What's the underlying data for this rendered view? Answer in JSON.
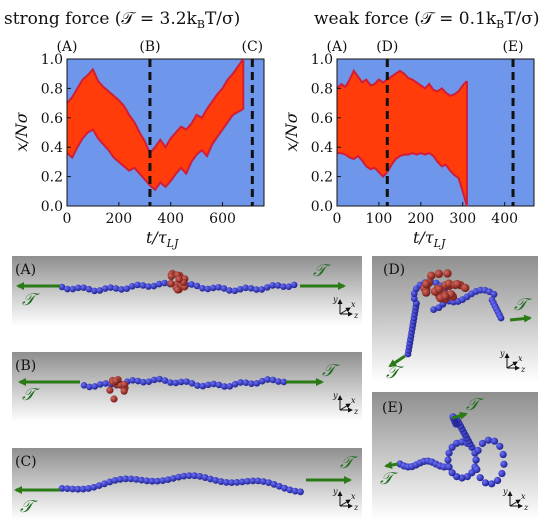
{
  "chart_data": [
    {
      "type": "area",
      "title": "strong force (𝒯 = 3.2k",
      "title_sub": "B",
      "title_tail": "T/σ)",
      "xlabel": "t/τ",
      "xlabel_sub": "LJ",
      "ylabel": "x/Nσ",
      "xlim": [
        0,
        760
      ],
      "ylim": [
        0.0,
        1.0
      ],
      "xticks": [
        0,
        200,
        400,
        600
      ],
      "yticks": [
        "0.0",
        "0.2",
        "0.4",
        "0.6",
        "0.8",
        "1.0"
      ],
      "background_color": "#6e96eb",
      "fill_color": "#ff3c0a",
      "edge_color": "#d01e38",
      "markers": [
        {
          "label": "(A)",
          "t": 0
        },
        {
          "label": "(B)",
          "t": 320
        },
        {
          "label": "(C)",
          "t": 715
        }
      ],
      "band": [
        {
          "t": 0,
          "low": 0.36,
          "high": 0.7
        },
        {
          "t": 20,
          "low": 0.33,
          "high": 0.74
        },
        {
          "t": 40,
          "low": 0.4,
          "high": 0.8
        },
        {
          "t": 60,
          "low": 0.46,
          "high": 0.86
        },
        {
          "t": 80,
          "low": 0.5,
          "high": 0.89
        },
        {
          "t": 100,
          "low": 0.52,
          "high": 0.93
        },
        {
          "t": 120,
          "low": 0.46,
          "high": 0.85
        },
        {
          "t": 140,
          "low": 0.42,
          "high": 0.81
        },
        {
          "t": 160,
          "low": 0.38,
          "high": 0.78
        },
        {
          "t": 180,
          "low": 0.33,
          "high": 0.75
        },
        {
          "t": 200,
          "low": 0.3,
          "high": 0.72
        },
        {
          "t": 220,
          "low": 0.27,
          "high": 0.68
        },
        {
          "t": 240,
          "low": 0.24,
          "high": 0.62
        },
        {
          "t": 260,
          "low": 0.26,
          "high": 0.57
        },
        {
          "t": 280,
          "low": 0.22,
          "high": 0.5
        },
        {
          "t": 300,
          "low": 0.18,
          "high": 0.44
        },
        {
          "t": 320,
          "low": 0.14,
          "high": 0.36
        },
        {
          "t": 340,
          "low": 0.11,
          "high": 0.4
        },
        {
          "t": 360,
          "low": 0.16,
          "high": 0.45
        },
        {
          "t": 380,
          "low": 0.13,
          "high": 0.4
        },
        {
          "t": 400,
          "low": 0.17,
          "high": 0.46
        },
        {
          "t": 420,
          "low": 0.22,
          "high": 0.5
        },
        {
          "t": 440,
          "low": 0.26,
          "high": 0.54
        },
        {
          "t": 460,
          "low": 0.22,
          "high": 0.52
        },
        {
          "t": 480,
          "low": 0.3,
          "high": 0.56
        },
        {
          "t": 500,
          "low": 0.35,
          "high": 0.62
        },
        {
          "t": 520,
          "low": 0.38,
          "high": 0.6
        },
        {
          "t": 540,
          "low": 0.34,
          "high": 0.66
        },
        {
          "t": 560,
          "low": 0.42,
          "high": 0.71
        },
        {
          "t": 580,
          "low": 0.47,
          "high": 0.76
        },
        {
          "t": 600,
          "low": 0.52,
          "high": 0.8
        },
        {
          "t": 620,
          "low": 0.57,
          "high": 0.86
        },
        {
          "t": 640,
          "low": 0.62,
          "high": 0.9
        },
        {
          "t": 660,
          "low": 0.64,
          "high": 0.95
        },
        {
          "t": 680,
          "low": 0.66,
          "high": 1.0
        }
      ]
    },
    {
      "type": "area",
      "title": "weak force (𝒯 = 0.1k",
      "title_sub": "B",
      "title_tail": "T/σ)",
      "xlabel": "t/τ",
      "xlabel_sub": "LJ",
      "ylabel": "x/Nσ",
      "xlim": [
        0,
        470
      ],
      "ylim": [
        0.0,
        1.0
      ],
      "xticks": [
        0,
        100,
        200,
        300,
        400
      ],
      "yticks": [
        "0.0",
        "0.2",
        "0.4",
        "0.6",
        "0.8",
        "1.0"
      ],
      "background_color": "#6e96eb",
      "fill_color": "#ff3c0a",
      "edge_color": "#d01e38",
      "markers": [
        {
          "label": "(A)",
          "t": 0
        },
        {
          "label": "(D)",
          "t": 120
        },
        {
          "label": "(E)",
          "t": 420
        }
      ],
      "band": [
        {
          "t": 0,
          "low": 0.36,
          "high": 0.8
        },
        {
          "t": 10,
          "low": 0.36,
          "high": 0.83
        },
        {
          "t": 20,
          "low": 0.35,
          "high": 0.81
        },
        {
          "t": 30,
          "low": 0.33,
          "high": 0.86
        },
        {
          "t": 40,
          "low": 0.32,
          "high": 0.92
        },
        {
          "t": 50,
          "low": 0.34,
          "high": 0.88
        },
        {
          "t": 60,
          "low": 0.31,
          "high": 0.84
        },
        {
          "t": 70,
          "low": 0.27,
          "high": 0.86
        },
        {
          "t": 80,
          "low": 0.25,
          "high": 0.82
        },
        {
          "t": 90,
          "low": 0.26,
          "high": 0.83
        },
        {
          "t": 100,
          "low": 0.23,
          "high": 0.86
        },
        {
          "t": 110,
          "low": 0.2,
          "high": 0.84
        },
        {
          "t": 120,
          "low": 0.23,
          "high": 0.86
        },
        {
          "t": 130,
          "low": 0.28,
          "high": 0.88
        },
        {
          "t": 140,
          "low": 0.32,
          "high": 0.9
        },
        {
          "t": 150,
          "low": 0.34,
          "high": 0.92
        },
        {
          "t": 160,
          "low": 0.35,
          "high": 0.9
        },
        {
          "t": 170,
          "low": 0.35,
          "high": 0.87
        },
        {
          "t": 180,
          "low": 0.36,
          "high": 0.86
        },
        {
          "t": 190,
          "low": 0.35,
          "high": 0.84
        },
        {
          "t": 200,
          "low": 0.36,
          "high": 0.82
        },
        {
          "t": 210,
          "low": 0.35,
          "high": 0.8
        },
        {
          "t": 220,
          "low": 0.36,
          "high": 0.83
        },
        {
          "t": 230,
          "low": 0.34,
          "high": 0.79
        },
        {
          "t": 240,
          "low": 0.3,
          "high": 0.78
        },
        {
          "t": 250,
          "low": 0.27,
          "high": 0.8
        },
        {
          "t": 260,
          "low": 0.28,
          "high": 0.77
        },
        {
          "t": 270,
          "low": 0.24,
          "high": 0.75
        },
        {
          "t": 280,
          "low": 0.21,
          "high": 0.76
        },
        {
          "t": 290,
          "low": 0.19,
          "high": 0.78
        },
        {
          "t": 300,
          "low": 0.1,
          "high": 0.82
        },
        {
          "t": 310,
          "low": 0.0,
          "high": 0.85
        }
      ]
    }
  ],
  "snapshots": [
    {
      "label": "(A)",
      "has_force": true
    },
    {
      "label": "(B)",
      "has_force": true
    },
    {
      "label": "(C)",
      "has_force": true
    },
    {
      "label": "(D)",
      "has_force": true
    },
    {
      "label": "(E)",
      "has_force": true
    }
  ],
  "force_symbol": "𝒯",
  "axes_triad": {
    "y": "y",
    "x": "x",
    "z": "z"
  },
  "colors": {
    "bead_blue": "#2a2fb8",
    "bead_red": "#9e2a22",
    "arrow_green": "#2a7a16",
    "panel_top": "#8f8f8f",
    "panel_bottom": "#ffffff"
  }
}
